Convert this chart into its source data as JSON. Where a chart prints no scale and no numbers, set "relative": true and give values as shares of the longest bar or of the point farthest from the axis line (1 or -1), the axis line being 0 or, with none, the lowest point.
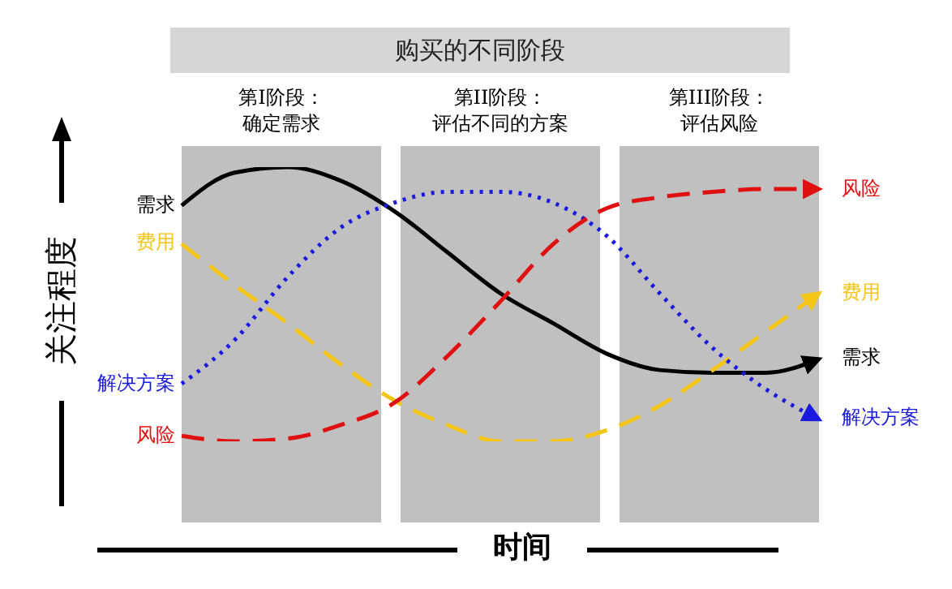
{
  "chart_data": {
    "type": "line",
    "relative": true,
    "title": "购买的不同阶段",
    "xlabel": "时间",
    "ylabel": "关注程度",
    "categories": [
      null,
      null,
      null,
      null,
      null,
      null,
      null,
      null,
      null,
      null,
      null,
      null,
      null
    ],
    "annotations": [
      "第I阶段：",
      "确定需求",
      "第II阶段：",
      "评估不同的方案",
      "第III阶段：",
      "评估风险"
    ],
    "series": [
      {
        "name": "需求",
        "color": "#000000",
        "line_style": "solid",
        "values": [
          0.86,
          0.98,
          1.0,
          0.95,
          0.84,
          0.69,
          0.54,
          0.43,
          0.32,
          0.26,
          0.25,
          0.25,
          0.3
        ]
      },
      {
        "name": "费用",
        "color": "#f5c518",
        "line_style": "dashed",
        "values": [
          0.72,
          0.57,
          0.43,
          0.28,
          0.15,
          0.06,
          0,
          0,
          0.04,
          0.13,
          0.26,
          0.4,
          0.54
        ]
      },
      {
        "name": "解决方案",
        "color": "#1a1adf",
        "line_style": "dotted",
        "values": [
          0.21,
          0.37,
          0.6,
          0.78,
          0.87,
          0.91,
          0.91,
          0.87,
          0.75,
          0.54,
          0.34,
          0.19,
          0.08
        ]
      },
      {
        "name": "风险",
        "color": "#e01010",
        "line_style": "dashed",
        "values": [
          0.02,
          0,
          0.01,
          0.06,
          0.14,
          0.31,
          0.51,
          0.72,
          0.85,
          0.89,
          0.91,
          0.92,
          0.92
        ]
      }
    ]
  }
}
